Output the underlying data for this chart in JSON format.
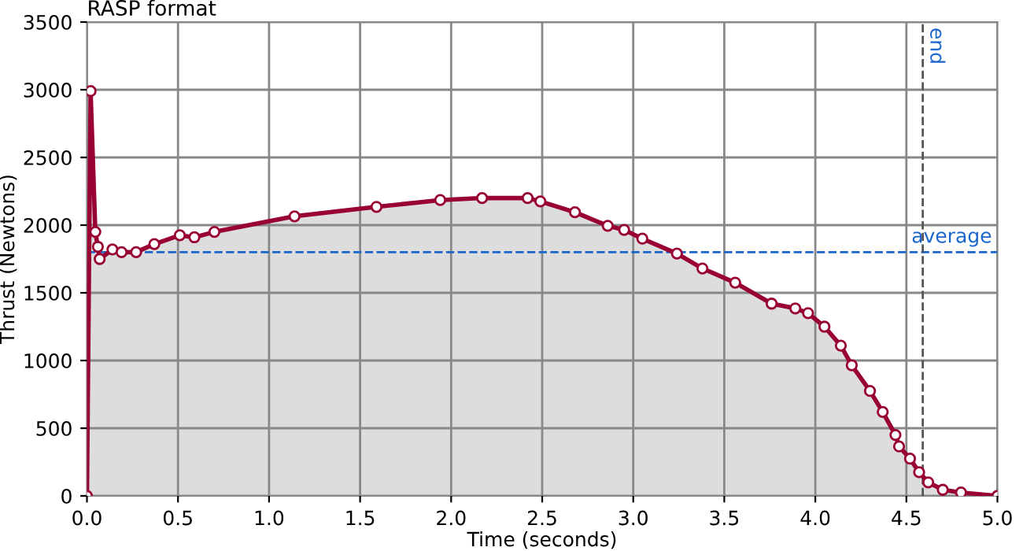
{
  "chart_data": {
    "type": "area",
    "title": "RASP format",
    "xlabel": "Time (seconds)",
    "ylabel": "Thrust (Newtons)",
    "xlim": [
      0,
      5
    ],
    "ylim": [
      0,
      3500
    ],
    "xticks": [
      {
        "value": 0,
        "label": "0.0"
      },
      {
        "value": 0.5,
        "label": "0.5"
      },
      {
        "value": 1,
        "label": "1.0"
      },
      {
        "value": 1.5,
        "label": "1.5"
      },
      {
        "value": 2,
        "label": "2.0"
      },
      {
        "value": 2.5,
        "label": "2.5"
      },
      {
        "value": 3,
        "label": "3.0"
      },
      {
        "value": 3.5,
        "label": "3.5"
      },
      {
        "value": 4,
        "label": "4.0"
      },
      {
        "value": 4.5,
        "label": "4.5"
      },
      {
        "value": 5,
        "label": "5.0"
      }
    ],
    "yticks": [
      0,
      500,
      1000,
      1500,
      2000,
      2500,
      3000,
      3500
    ],
    "grid": true,
    "marker": "circle",
    "line_style": "solid",
    "x": [
      0,
      0.02,
      0.046,
      0.06,
      0.07,
      0.14,
      0.19,
      0.27,
      0.37,
      0.51,
      0.59,
      0.7,
      1.14,
      1.59,
      1.94,
      2.17,
      2.42,
      2.49,
      2.68,
      2.86,
      2.95,
      3.05,
      3.24,
      3.38,
      3.56,
      3.76,
      3.89,
      3.96,
      4.05,
      4.14,
      4.2,
      4.3,
      4.37,
      4.44,
      4.46,
      4.52,
      4.57,
      4.62,
      4.7,
      4.8,
      5.0
    ],
    "series": [
      {
        "color": "#990033",
        "values": [
          0,
          2990,
          1950,
          1840,
          1750,
          1820,
          1800,
          1800,
          1860,
          1925,
          1910,
          1950,
          2065,
          2135,
          2185,
          2200,
          2200,
          2175,
          2095,
          1995,
          1965,
          1900,
          1790,
          1680,
          1575,
          1420,
          1385,
          1350,
          1250,
          1110,
          965,
          775,
          620,
          450,
          365,
          275,
          175,
          100,
          45,
          25,
          0
        ]
      }
    ],
    "ref_lines": [
      {
        "axis": "y",
        "value": 1800,
        "label": "average",
        "color": "#1a66cc",
        "line_style": "dashed"
      },
      {
        "axis": "x",
        "value": 4.59,
        "label": "end",
        "color": "#555555",
        "line_style": "dashed"
      }
    ]
  }
}
